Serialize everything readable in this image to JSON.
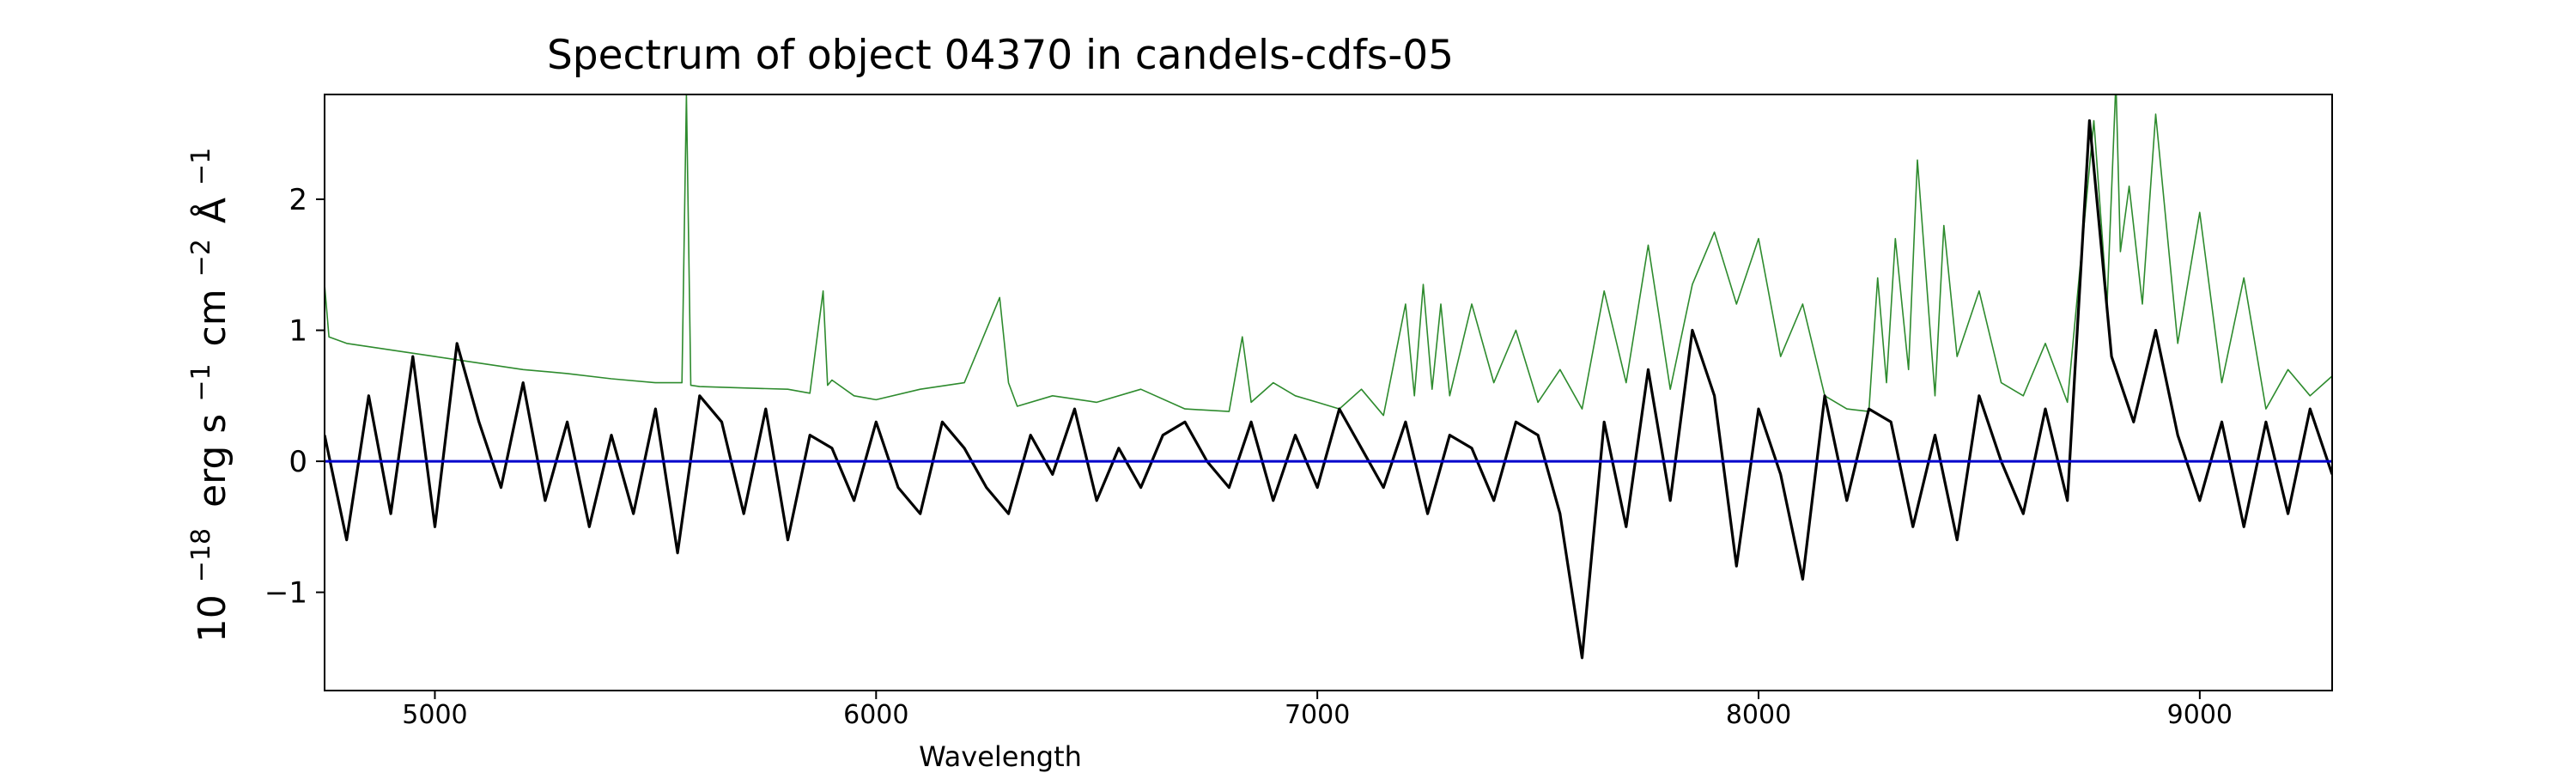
{
  "chart_data": {
    "type": "line",
    "title": "Spectrum of object 04370 in candels-cdfs-05",
    "xlabel": "Wavelength",
    "ylabel": {
      "base": "10",
      "exp1": "−18",
      "erg": "erg s",
      "exp2": "−1",
      "cm": "cm",
      "exp3": "−2",
      "ang": "Å",
      "exp4": "−1"
    },
    "xlim": [
      4750,
      9300
    ],
    "ylim": [
      -1.75,
      2.8
    ],
    "xticks": [
      5000,
      6000,
      7000,
      8000,
      9000
    ],
    "xtick_labels": [
      "5000",
      "6000",
      "7000",
      "8000",
      "9000"
    ],
    "yticks": [
      -1,
      0,
      1,
      2
    ],
    "ytick_labels": [
      "−1",
      "0",
      "1",
      "2"
    ],
    "grid": false,
    "legend": "none",
    "series": [
      {
        "role": "flux",
        "color": "#000000",
        "x": [
          4750,
          4800,
          4850,
          4900,
          4950,
          5000,
          5050,
          5100,
          5150,
          5200,
          5250,
          5300,
          5350,
          5400,
          5450,
          5500,
          5550,
          5600,
          5650,
          5700,
          5750,
          5800,
          5850,
          5900,
          5950,
          6000,
          6050,
          6100,
          6150,
          6200,
          6250,
          6300,
          6350,
          6400,
          6450,
          6500,
          6550,
          6600,
          6650,
          6700,
          6750,
          6800,
          6850,
          6900,
          6950,
          7000,
          7050,
          7100,
          7150,
          7200,
          7250,
          7300,
          7350,
          7400,
          7450,
          7500,
          7550,
          7600,
          7650,
          7700,
          7750,
          7800,
          7850,
          7900,
          7950,
          8000,
          8050,
          8100,
          8150,
          8200,
          8250,
          8300,
          8350,
          8400,
          8450,
          8500,
          8550,
          8600,
          8650,
          8700,
          8750,
          8800,
          8850,
          8900,
          8950,
          9000,
          9050,
          9100,
          9150,
          9200,
          9250,
          9300
        ],
        "y": [
          0.2,
          -0.6,
          0.5,
          -0.4,
          0.8,
          -0.5,
          0.9,
          0.3,
          -0.2,
          0.6,
          -0.3,
          0.3,
          -0.5,
          0.2,
          -0.4,
          0.4,
          -0.7,
          0.5,
          0.3,
          -0.4,
          0.4,
          -0.6,
          0.2,
          0.1,
          -0.3,
          0.3,
          -0.2,
          -0.4,
          0.3,
          0.1,
          -0.2,
          -0.4,
          0.2,
          -0.1,
          0.4,
          -0.3,
          0.1,
          -0.2,
          0.2,
          0.3,
          0.0,
          -0.2,
          0.3,
          -0.3,
          0.2,
          -0.2,
          0.4,
          0.1,
          -0.2,
          0.3,
          -0.4,
          0.2,
          0.1,
          -0.3,
          0.3,
          0.2,
          -0.4,
          -1.5,
          0.3,
          -0.5,
          0.7,
          -0.3,
          1.0,
          0.5,
          -0.8,
          0.4,
          -0.1,
          -0.9,
          0.5,
          -0.3,
          0.4,
          0.3,
          -0.5,
          0.2,
          -0.6,
          0.5,
          0.0,
          -0.4,
          0.4,
          -0.3,
          2.6,
          0.8,
          0.3,
          1.0,
          0.2,
          -0.3,
          0.3,
          -0.5,
          0.3,
          -0.4,
          0.4,
          -0.1
        ]
      },
      {
        "role": "noise",
        "color": "#2e8b2e",
        "x": [
          4750,
          4760,
          4800,
          4900,
          5000,
          5100,
          5200,
          5300,
          5400,
          5500,
          5560,
          5570,
          5580,
          5600,
          5700,
          5800,
          5850,
          5880,
          5890,
          5900,
          5950,
          6000,
          6100,
          6200,
          6280,
          6300,
          6320,
          6400,
          6500,
          6600,
          6700,
          6800,
          6830,
          6850,
          6900,
          6950,
          7000,
          7050,
          7100,
          7150,
          7200,
          7220,
          7240,
          7260,
          7280,
          7300,
          7350,
          7400,
          7450,
          7500,
          7550,
          7600,
          7650,
          7700,
          7750,
          7800,
          7850,
          7900,
          7950,
          8000,
          8050,
          8100,
          8150,
          8200,
          8250,
          8270,
          8290,
          8310,
          8340,
          8360,
          8400,
          8420,
          8450,
          8500,
          8550,
          8600,
          8650,
          8700,
          8760,
          8790,
          8810,
          8820,
          8840,
          8870,
          8900,
          8950,
          9000,
          9050,
          9100,
          9150,
          9200,
          9250,
          9300
        ],
        "y": [
          1.35,
          0.95,
          0.9,
          0.85,
          0.8,
          0.75,
          0.7,
          0.67,
          0.63,
          0.6,
          0.6,
          2.8,
          0.58,
          0.57,
          0.56,
          0.55,
          0.52,
          1.3,
          0.58,
          0.62,
          0.5,
          0.47,
          0.55,
          0.6,
          1.25,
          0.6,
          0.42,
          0.5,
          0.45,
          0.55,
          0.4,
          0.38,
          0.95,
          0.45,
          0.6,
          0.5,
          0.45,
          0.4,
          0.55,
          0.35,
          1.2,
          0.5,
          1.35,
          0.55,
          1.2,
          0.5,
          1.2,
          0.6,
          1.0,
          0.45,
          0.7,
          0.4,
          1.3,
          0.6,
          1.65,
          0.55,
          1.35,
          1.75,
          1.2,
          1.7,
          0.8,
          1.2,
          0.5,
          0.4,
          0.38,
          1.4,
          0.6,
          1.7,
          0.7,
          2.3,
          0.5,
          1.8,
          0.8,
          1.3,
          0.6,
          0.5,
          0.9,
          0.45,
          2.6,
          1.2,
          2.9,
          1.6,
          2.1,
          1.2,
          2.65,
          0.9,
          1.9,
          0.6,
          1.4,
          0.4,
          0.7,
          0.5,
          0.65
        ]
      },
      {
        "role": "zero",
        "color": "#0000cc",
        "x": [
          4750,
          9300
        ],
        "y": [
          0,
          0
        ]
      }
    ]
  }
}
